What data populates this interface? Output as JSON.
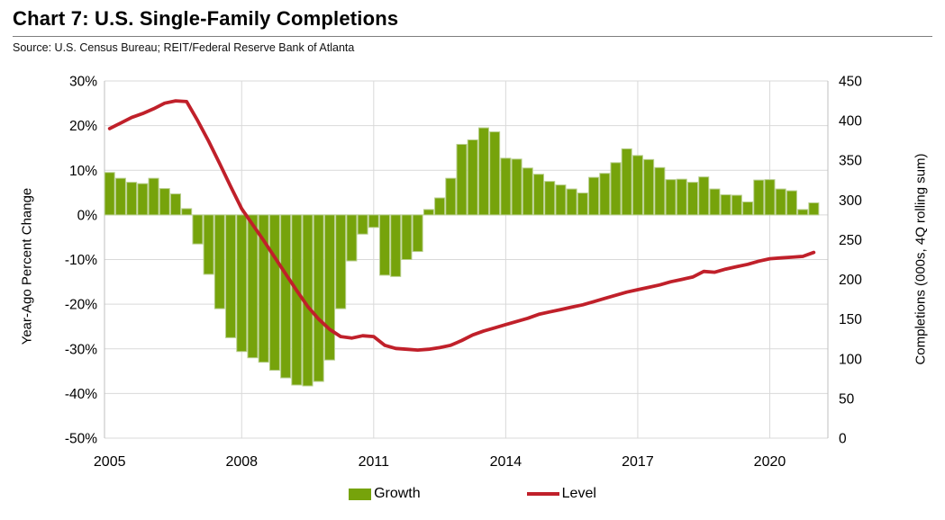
{
  "header": {
    "title": "Chart 7: U.S. Single-Family Completions",
    "source": "Source: U.S. Census Bureau; REIT/Federal Reserve Bank of Atlanta"
  },
  "colors": {
    "bar_fill": "#76A30B",
    "bar_edge": "#B7CE8C",
    "line": "#C0202A",
    "gridline": "#D9D9D9",
    "axis_line": "#BFBFBF",
    "text": "#000000"
  },
  "chart_data": {
    "type": "bar",
    "subtype": "combo bar+line, dual axis",
    "x_quarters": [
      "2005Q1",
      "2005Q2",
      "2005Q3",
      "2005Q4",
      "2006Q1",
      "2006Q2",
      "2006Q3",
      "2006Q4",
      "2007Q1",
      "2007Q2",
      "2007Q3",
      "2007Q4",
      "2008Q1",
      "2008Q2",
      "2008Q3",
      "2008Q4",
      "2009Q1",
      "2009Q2",
      "2009Q3",
      "2009Q4",
      "2010Q1",
      "2010Q2",
      "2010Q3",
      "2010Q4",
      "2011Q1",
      "2011Q2",
      "2011Q3",
      "2011Q4",
      "2012Q1",
      "2012Q2",
      "2012Q3",
      "2012Q4",
      "2013Q1",
      "2013Q2",
      "2013Q3",
      "2013Q4",
      "2014Q1",
      "2014Q2",
      "2014Q3",
      "2014Q4",
      "2015Q1",
      "2015Q2",
      "2015Q3",
      "2015Q4",
      "2016Q1",
      "2016Q2",
      "2016Q3",
      "2016Q4",
      "2017Q1",
      "2017Q2",
      "2017Q3",
      "2017Q4",
      "2018Q1",
      "2018Q2",
      "2018Q3",
      "2018Q4",
      "2019Q1",
      "2019Q2",
      "2019Q3",
      "2019Q4",
      "2020Q1",
      "2020Q2",
      "2020Q3",
      "2020Q4",
      "2021Q1"
    ],
    "x_tick_labels": [
      "2005",
      "2008",
      "2011",
      "2014",
      "2017",
      "2020"
    ],
    "x_tick_positions": [
      0,
      12,
      24,
      36,
      48,
      60
    ],
    "series": [
      {
        "name": "Growth",
        "type": "bar",
        "axis": "left",
        "color": "#76A30B",
        "values": [
          9.5,
          8.2,
          7.3,
          7.0,
          8.2,
          5.9,
          4.7,
          1.4,
          -6.5,
          -13.3,
          -21.0,
          -27.5,
          -30.6,
          -32.0,
          -33.0,
          -34.8,
          -36.5,
          -38.1,
          -38.3,
          -37.3,
          -32.5,
          -21.0,
          -10.3,
          -4.3,
          -2.8,
          -13.5,
          -13.8,
          -10.0,
          -8.2,
          1.2,
          3.8,
          8.2,
          15.8,
          16.8,
          19.5,
          18.6,
          12.7,
          12.5,
          10.5,
          9.1,
          7.5,
          6.7,
          5.8,
          4.9,
          8.4,
          9.3,
          11.7,
          14.8,
          13.3,
          12.4,
          10.6,
          7.9,
          8.0,
          7.3,
          8.5,
          5.8,
          4.5,
          4.4,
          2.9,
          7.8,
          7.9,
          5.8,
          5.4,
          1.2,
          2.7
        ]
      },
      {
        "name": "Level",
        "type": "line",
        "axis": "right",
        "color": "#C0202A",
        "values": [
          390,
          397,
          404,
          409,
          415,
          422,
          425,
          424,
          400,
          374,
          346,
          317,
          289,
          269,
          249,
          228,
          207,
          186,
          166,
          150,
          137,
          128,
          126,
          129,
          128,
          117,
          113,
          112,
          111,
          112,
          114,
          117,
          123,
          130,
          135,
          139,
          143,
          147,
          151,
          156,
          159,
          162,
          165,
          168,
          172,
          176,
          180,
          184,
          187,
          190,
          193,
          197,
          200,
          203,
          210,
          209,
          213,
          216,
          219,
          223,
          226,
          227,
          228,
          229,
          234
        ]
      }
    ],
    "left_axis": {
      "label": "Year-Ago Percent Change",
      "min": -50,
      "max": 30,
      "tick_step": 10,
      "tick_labels": [
        "30%",
        "20%",
        "10%",
        "0%",
        "-10%",
        "-20%",
        "-30%",
        "-40%",
        "-50%"
      ]
    },
    "right_axis": {
      "label": "Completions (000s, 4Q rolling sum)",
      "min": 0,
      "max": 450,
      "tick_step": 50,
      "tick_labels": [
        "450",
        "400",
        "350",
        "300",
        "250",
        "200",
        "150",
        "100",
        "50",
        "0"
      ]
    },
    "legend": [
      {
        "label": "Growth"
      },
      {
        "label": "Level"
      }
    ],
    "grid": true
  }
}
